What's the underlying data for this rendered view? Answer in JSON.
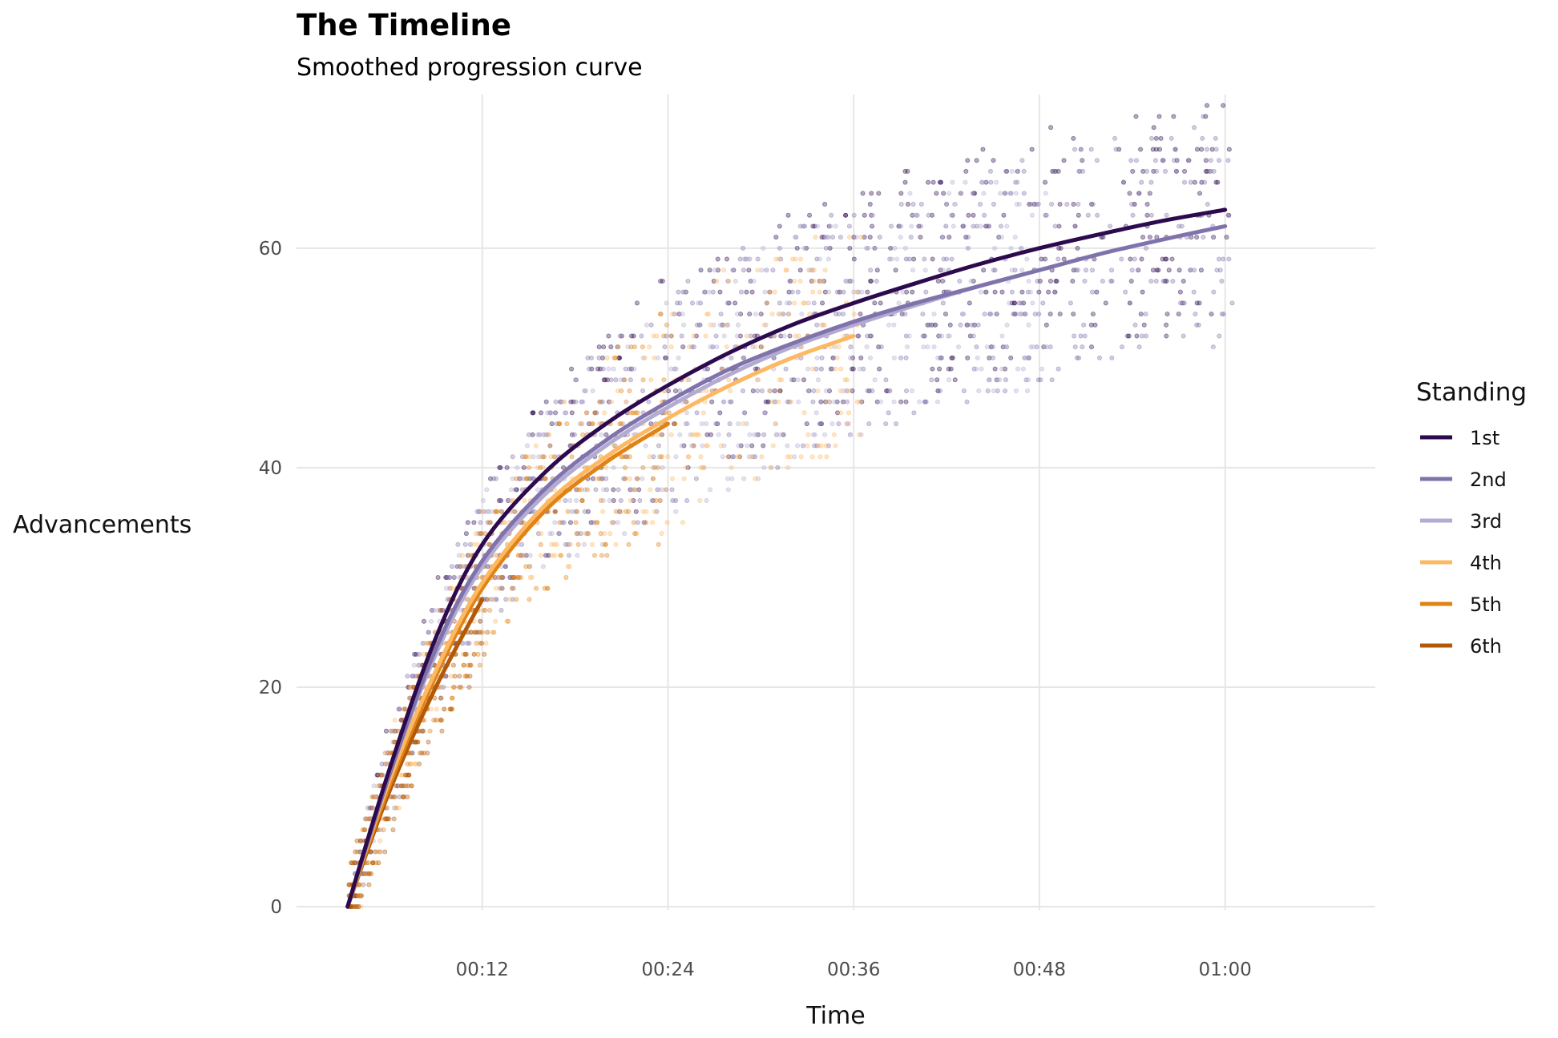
{
  "chart_data": {
    "type": "line",
    "title": "The Timeline",
    "subtitle": "Smoothed progression curve",
    "xlabel": "Time",
    "ylabel": "Advancements",
    "x_unit": "minutes",
    "x_ticks": [
      {
        "value": 12,
        "label": "00:12"
      },
      {
        "value": 24,
        "label": "00:24"
      },
      {
        "value": 36,
        "label": "00:36"
      },
      {
        "value": 48,
        "label": "00:48"
      },
      {
        "value": 60,
        "label": "01:00"
      }
    ],
    "y_ticks": [
      0,
      20,
      40,
      60
    ],
    "xlim": [
      0,
      69.7
    ],
    "ylim": [
      -3.5,
      74
    ],
    "grid": true,
    "legend": {
      "title": "Standing",
      "position": "right"
    },
    "colors": {
      "1st": "#2d0a4e",
      "2nd": "#8073ac",
      "3rd": "#b2abd2",
      "4th": "#fdb863",
      "5th": "#e08214",
      "6th": "#b35806"
    },
    "series": [
      {
        "name": "1st",
        "x": [
          3.3,
          6,
          9,
          12,
          16,
          20,
          24,
          28,
          32,
          36,
          40,
          44,
          48,
          52,
          56,
          60
        ],
        "y": [
          0,
          12.5,
          24.5,
          33,
          39.5,
          44,
          47.5,
          50.5,
          53,
          55,
          56.8,
          58.5,
          60,
          61.3,
          62.5,
          63.5
        ]
      },
      {
        "name": "2nd",
        "x": [
          3.3,
          6,
          9,
          12,
          16,
          20,
          24,
          28,
          32,
          36,
          40,
          44,
          48,
          52,
          56,
          60
        ],
        "y": [
          0,
          12,
          23.5,
          31.5,
          38,
          42.5,
          46,
          49,
          51.3,
          53.3,
          55,
          56.5,
          58,
          59.5,
          60.8,
          62
        ]
      },
      {
        "name": "3rd",
        "x": [
          3.3,
          6,
          9,
          12,
          16,
          20,
          24,
          28,
          32,
          36,
          40,
          44,
          48
        ],
        "y": [
          0,
          12,
          23,
          31,
          37.5,
          42,
          45.5,
          48.5,
          51,
          53,
          54.8,
          56.5,
          58
        ]
      },
      {
        "name": "4th",
        "x": [
          3.3,
          6,
          9,
          12,
          16,
          20,
          24,
          28,
          32,
          36
        ],
        "y": [
          0,
          11.5,
          21.5,
          29.5,
          36.5,
          41,
          44.5,
          47.5,
          50,
          52
        ]
      },
      {
        "name": "5th",
        "x": [
          3.3,
          6,
          9,
          12,
          16,
          20,
          24
        ],
        "y": [
          0,
          11,
          21,
          29,
          36,
          40.5,
          44
        ]
      },
      {
        "name": "6th",
        "x": [
          3.3,
          6,
          9,
          12
        ],
        "y": [
          0,
          10.5,
          20,
          28
        ]
      }
    ],
    "scatter": {
      "description_source": "raw observations shown as faint points around each series",
      "opacity": 0.35
    }
  }
}
